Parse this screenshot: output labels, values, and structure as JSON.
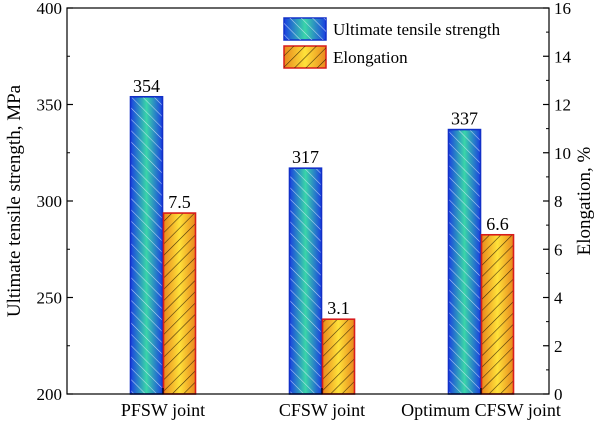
{
  "chart_data": {
    "type": "bar",
    "categories": [
      "PFSW joint",
      "CFSW joint",
      "Optimum CFSW joint"
    ],
    "series": [
      {
        "name": "Ultimate tensile strength",
        "axis": "left",
        "values": [
          354,
          317,
          337
        ],
        "labels": [
          "354",
          "317",
          "337"
        ],
        "fill_top": "#1a3fe0",
        "fill_mid": "#3ad6a8",
        "hatch": "#e8f0ff",
        "border": "#1230c8"
      },
      {
        "name": "Elongation",
        "axis": "right",
        "values": [
          7.5,
          3.1,
          6.6
        ],
        "labels": [
          "7.5",
          "3.1",
          "6.6"
        ],
        "fill_edge": "#e8881c",
        "fill_mid": "#ffe23a",
        "hatch": "#2a1a00",
        "border": "#d81c1c"
      }
    ],
    "y_left": {
      "label": "Ultimate tensile strength, MPa",
      "ylim": [
        200,
        400
      ],
      "ticks": [
        200,
        250,
        300,
        350,
        400
      ]
    },
    "y_right": {
      "label": "Elongation, %",
      "ylim": [
        0,
        16
      ],
      "ticks": [
        0,
        2,
        4,
        6,
        8,
        10,
        12,
        14,
        16
      ]
    },
    "legend_position": "top-right",
    "grid": false
  }
}
